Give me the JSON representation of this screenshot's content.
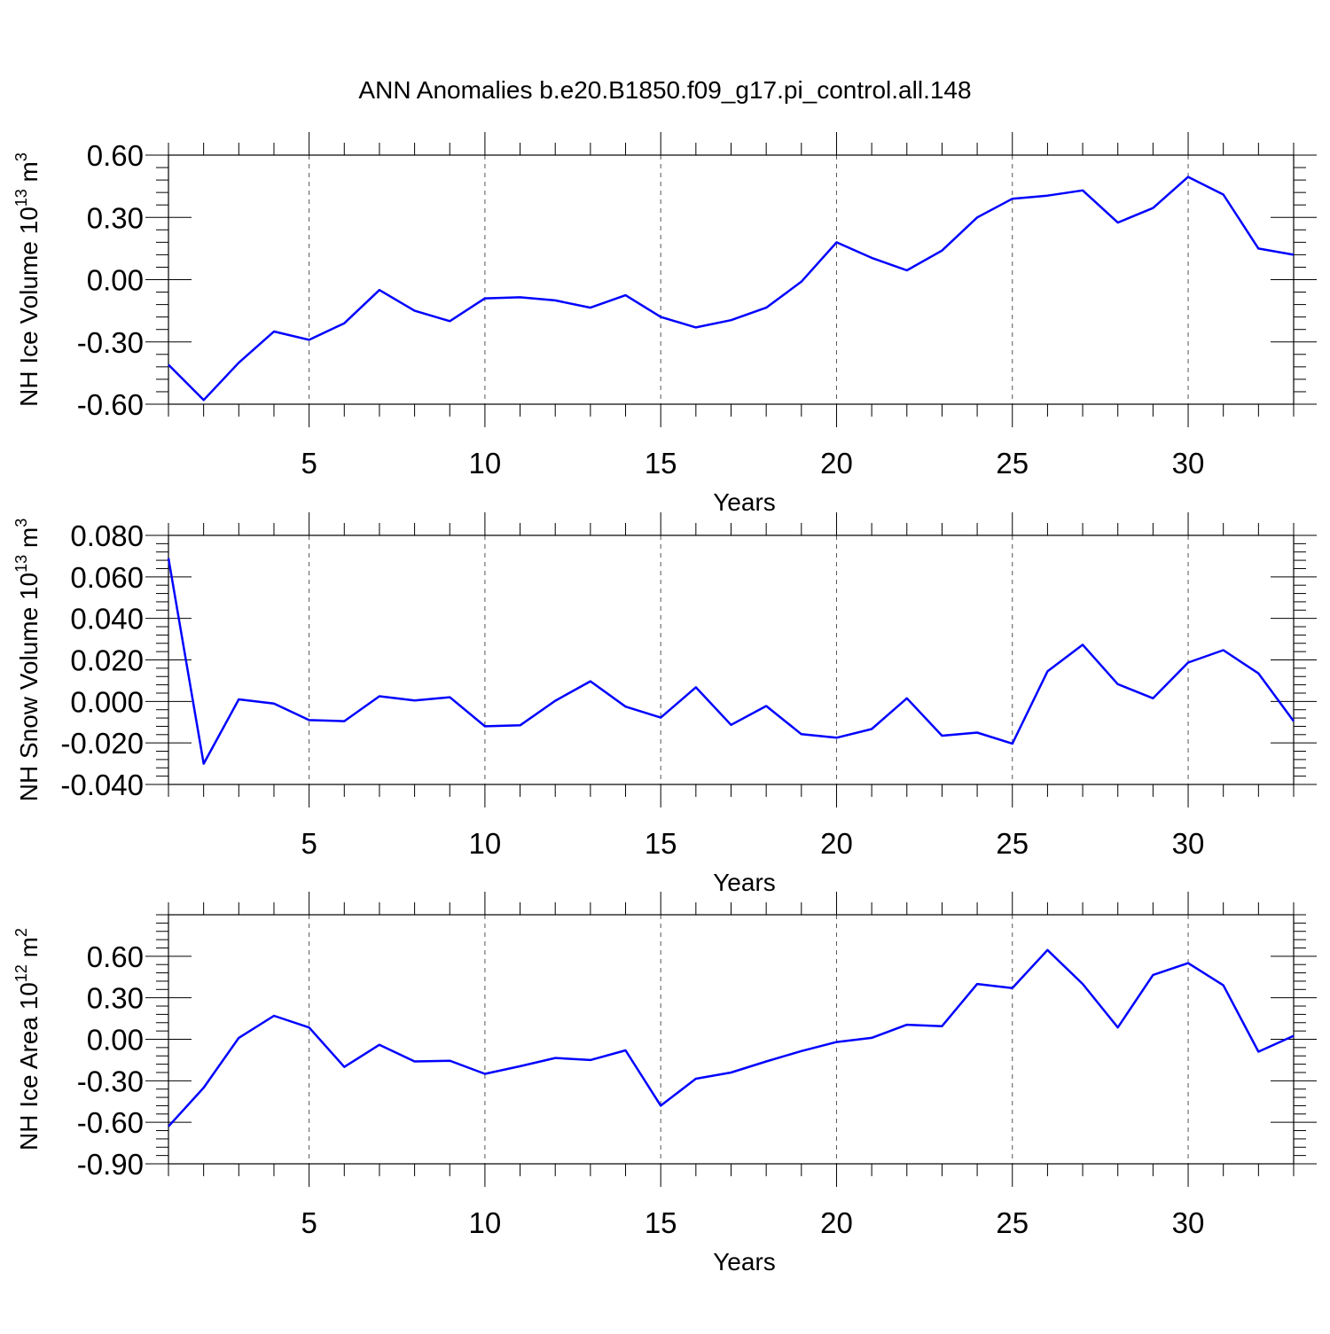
{
  "title": "ANN Anomalies b.e20.B1850.f09_g17.pi_control.all.148",
  "line_color": "#0000ff",
  "chart_data": [
    {
      "type": "line",
      "ylabel": "NH Ice Volume 10",
      "ylabel_exp": "13",
      "ylabel_unit": " m",
      "ylabel_unit_exp": "3",
      "xlabel": "Years",
      "xlim": [
        1,
        33
      ],
      "ylim": [
        -0.6,
        0.6
      ],
      "xticks": [
        "5",
        "10",
        "15",
        "20",
        "25",
        "30"
      ],
      "yticks": [
        "-0.60",
        "-0.30",
        "0.00",
        "0.30",
        "0.60"
      ],
      "x": [
        1,
        2,
        3,
        4,
        5,
        6,
        7,
        8,
        9,
        10,
        11,
        12,
        13,
        14,
        15,
        16,
        17,
        18,
        19,
        20,
        21,
        22,
        23,
        24,
        25,
        26,
        27,
        28,
        29,
        30,
        31,
        32,
        33
      ],
      "values": [
        -0.41,
        -0.58,
        -0.4,
        -0.25,
        -0.29,
        -0.21,
        -0.05,
        -0.15,
        -0.2,
        -0.09,
        -0.085,
        -0.1,
        -0.135,
        -0.075,
        -0.18,
        -0.23,
        -0.195,
        -0.135,
        -0.01,
        0.18,
        0.105,
        0.045,
        0.14,
        0.3,
        0.39,
        0.405,
        0.43,
        0.275,
        0.345,
        0.495,
        0.41,
        0.15,
        0.12
      ]
    },
    {
      "type": "line",
      "ylabel": "NH Snow Volume 10",
      "ylabel_exp": "13",
      "ylabel_unit": " m",
      "ylabel_unit_exp": "3",
      "xlabel": "Years",
      "xlim": [
        1,
        33
      ],
      "ylim": [
        -0.04,
        0.08
      ],
      "xticks": [
        "5",
        "10",
        "15",
        "20",
        "25",
        "30"
      ],
      "yticks": [
        "-0.040",
        "-0.020",
        "0.000",
        "0.020",
        "0.040",
        "0.060",
        "0.080"
      ],
      "x": [
        1,
        2,
        3,
        4,
        5,
        6,
        7,
        8,
        9,
        10,
        11,
        12,
        13,
        14,
        15,
        16,
        17,
        18,
        19,
        20,
        21,
        22,
        23,
        24,
        25,
        26,
        27,
        28,
        29,
        30,
        31,
        32,
        33
      ],
      "values": [
        0.069,
        -0.03,
        0.001,
        -0.001,
        -0.009,
        -0.0095,
        0.0025,
        0.0005,
        0.002,
        -0.012,
        -0.0115,
        0.0003,
        0.0097,
        -0.0025,
        -0.0078,
        0.0068,
        -0.0113,
        -0.0022,
        -0.0158,
        -0.0175,
        -0.0133,
        0.0015,
        -0.0165,
        -0.015,
        -0.0203,
        0.0145,
        0.0273,
        0.0083,
        0.0015,
        0.0187,
        0.0247,
        0.0135,
        -0.0095
      ]
    },
    {
      "type": "line",
      "ylabel": "NH Ice Area 10",
      "ylabel_exp": "12",
      "ylabel_unit": " m",
      "ylabel_unit_exp": "2",
      "xlabel": "Years",
      "xlim": [
        1,
        33
      ],
      "ylim": [
        -0.9,
        0.9
      ],
      "xticks": [
        "5",
        "10",
        "15",
        "20",
        "25",
        "30"
      ],
      "yticks": [
        "-0.90",
        "-0.60",
        "-0.30",
        "0.00",
        "0.30",
        "0.60"
      ],
      "x": [
        1,
        2,
        3,
        4,
        5,
        6,
        7,
        8,
        9,
        10,
        11,
        12,
        13,
        14,
        15,
        16,
        17,
        18,
        19,
        20,
        21,
        22,
        23,
        24,
        25,
        26,
        27,
        28,
        29,
        30,
        31,
        32,
        33
      ],
      "values": [
        -0.63,
        -0.35,
        0.01,
        0.17,
        0.085,
        -0.2,
        -0.04,
        -0.16,
        -0.155,
        -0.25,
        -0.195,
        -0.135,
        -0.15,
        -0.08,
        -0.48,
        -0.285,
        -0.24,
        -0.16,
        -0.085,
        -0.02,
        0.01,
        0.105,
        0.095,
        0.4,
        0.37,
        0.645,
        0.4,
        0.085,
        0.465,
        0.55,
        0.39,
        -0.09,
        0.025
      ]
    }
  ]
}
